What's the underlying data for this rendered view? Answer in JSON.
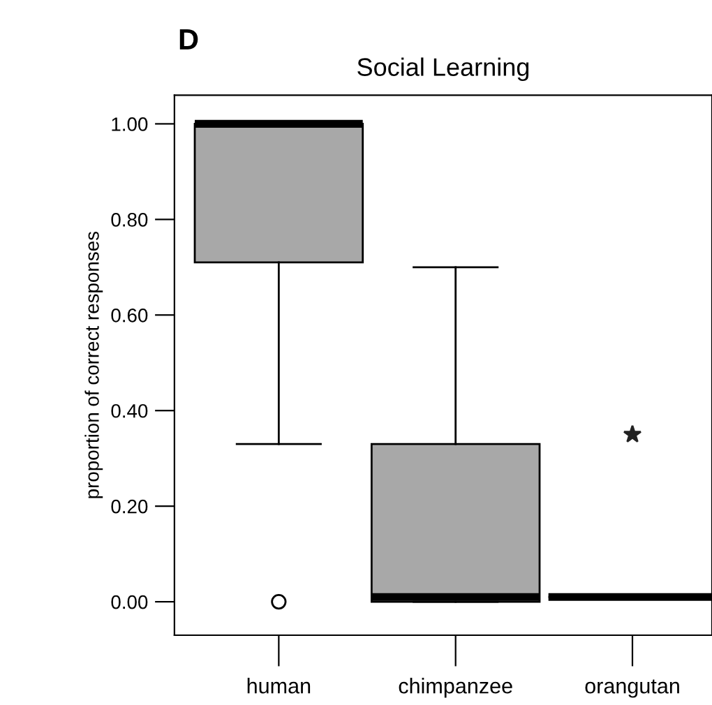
{
  "chart_data": {
    "type": "box",
    "title": "Social Learning",
    "ylabel": "proportion of correct responses",
    "annotations": [
      "D"
    ],
    "categories": [
      "human",
      "chimpanzee",
      "orangutan"
    ],
    "boxes": [
      {
        "low": 0.33,
        "q1": 0.71,
        "median": 1.0,
        "q3": 1.0,
        "high": 1.0,
        "outliers": [
          0.0
        ]
      },
      {
        "low": 0.0,
        "q1": 0.0,
        "median": 0.01,
        "q3": 0.33,
        "high": 0.7
      },
      {
        "low": 0.01,
        "q1": 0.01,
        "median": 0.01,
        "q3": 0.01,
        "high": 0.01
      }
    ],
    "colors": [
      "#a8a8a8",
      "#a8a8a8",
      "#000000"
    ],
    "series": [
      {
        "type": "scatter",
        "x": [
          "orangutan"
        ],
        "values": [
          0.35
        ],
        "marker": "star",
        "color": "#222222"
      }
    ],
    "ylim": [
      -0.07,
      1.06
    ],
    "yticks": [
      {
        "value": 0,
        "label": "0.00"
      },
      {
        "value": 0.2,
        "label": "0.20"
      },
      {
        "value": 0.4,
        "label": "0.40"
      },
      {
        "value": 0.6,
        "label": "0.60"
      },
      {
        "value": 0.8,
        "label": "0.80"
      },
      {
        "value": 1.0,
        "label": "1.00"
      }
    ],
    "grid": false
  }
}
